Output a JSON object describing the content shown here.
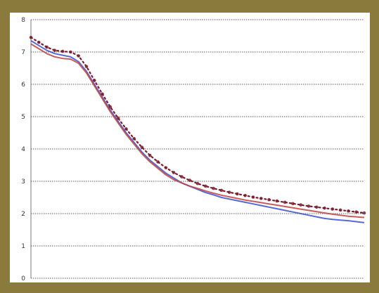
{
  "chart_data": {
    "type": "line",
    "title": "",
    "xlabel": "",
    "ylabel": "",
    "ylim": [
      0,
      8
    ],
    "y_ticks": [
      "0",
      "1",
      "2",
      "3",
      "4",
      "5",
      "6",
      "7",
      "8"
    ],
    "grid": true,
    "legend": "none",
    "x": [
      0,
      1,
      2,
      3,
      4,
      5,
      6,
      7,
      8,
      9,
      10,
      11,
      12,
      13,
      14,
      15,
      16,
      17,
      18,
      19,
      20,
      21,
      22,
      23,
      24,
      25,
      26,
      27,
      28,
      29,
      30,
      31,
      32,
      33,
      34,
      35,
      36,
      37,
      38,
      39,
      40,
      41,
      42
    ],
    "series": [
      {
        "color": "#3a4fd0",
        "style": "solid",
        "values": [
          7.35,
          7.2,
          7.05,
          6.95,
          6.9,
          6.85,
          6.7,
          6.4,
          6.0,
          5.6,
          5.2,
          4.85,
          4.5,
          4.2,
          3.9,
          3.65,
          3.45,
          3.25,
          3.1,
          2.95,
          2.85,
          2.75,
          2.65,
          2.58,
          2.5,
          2.45,
          2.4,
          2.35,
          2.3,
          2.25,
          2.2,
          2.15,
          2.1,
          2.05,
          2.0,
          1.95,
          1.9,
          1.85,
          1.82,
          1.8,
          1.78,
          1.75,
          1.72
        ]
      },
      {
        "color": "#c04040",
        "style": "solid",
        "values": [
          7.25,
          7.1,
          6.95,
          6.85,
          6.8,
          6.78,
          6.65,
          6.35,
          5.95,
          5.55,
          5.15,
          4.8,
          4.45,
          4.15,
          3.85,
          3.6,
          3.4,
          3.2,
          3.05,
          2.95,
          2.85,
          2.78,
          2.7,
          2.63,
          2.57,
          2.52,
          2.47,
          2.42,
          2.38,
          2.34,
          2.3,
          2.26,
          2.22,
          2.18,
          2.14,
          2.1,
          2.06,
          2.02,
          1.98,
          1.95,
          1.92,
          1.9,
          1.88
        ]
      },
      {
        "color": "#7a1a2a",
        "style": "dotted",
        "values": [
          7.45,
          7.3,
          7.15,
          7.05,
          7.02,
          7.0,
          6.88,
          6.55,
          6.12,
          5.7,
          5.3,
          4.95,
          4.62,
          4.32,
          4.05,
          3.8,
          3.6,
          3.42,
          3.27,
          3.14,
          3.03,
          2.93,
          2.85,
          2.78,
          2.72,
          2.66,
          2.61,
          2.56,
          2.51,
          2.47,
          2.43,
          2.39,
          2.35,
          2.31,
          2.27,
          2.23,
          2.2,
          2.17,
          2.14,
          2.11,
          2.08,
          2.05,
          2.02
        ]
      }
    ]
  }
}
